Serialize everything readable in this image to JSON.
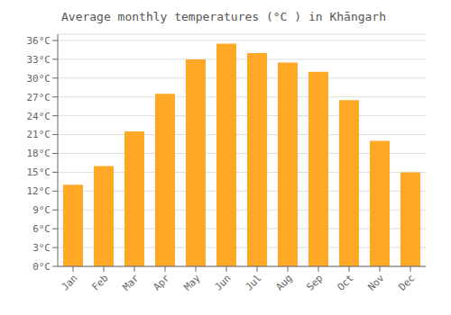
{
  "chart_data": {
    "type": "bar",
    "title": "Average monthly temperatures (°C ) in Khāngarh",
    "categories": [
      "Jan",
      "Feb",
      "Mar",
      "Apr",
      "May",
      "Jun",
      "Jul",
      "Aug",
      "Sep",
      "Oct",
      "Nov",
      "Dec"
    ],
    "values": [
      13,
      16,
      21.5,
      27.5,
      33,
      35.5,
      34,
      32.5,
      31,
      26.5,
      20,
      15
    ],
    "color": "#FFA726",
    "ylim": [
      0,
      37
    ],
    "yticks": [
      {
        "value": 0,
        "label": "0°C"
      },
      {
        "value": 3,
        "label": "3°C"
      },
      {
        "value": 6,
        "label": "6°C"
      },
      {
        "value": 9,
        "label": "9°C"
      },
      {
        "value": 12,
        "label": "12°C"
      },
      {
        "value": 15,
        "label": "15°C"
      },
      {
        "value": 18,
        "label": "18°C"
      },
      {
        "value": 21,
        "label": "21°C"
      },
      {
        "value": 24,
        "label": "24°C"
      },
      {
        "value": 27,
        "label": "27°C"
      },
      {
        "value": 30,
        "label": "30°C"
      },
      {
        "value": 33,
        "label": "33°C"
      },
      {
        "value": 36,
        "label": "36°C"
      }
    ],
    "grid": true
  }
}
